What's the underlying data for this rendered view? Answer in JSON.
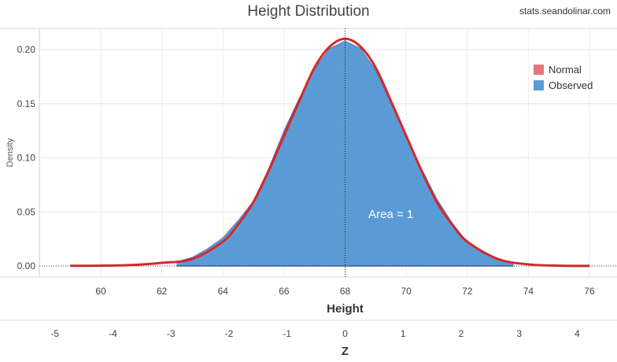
{
  "title": "Height Distribution",
  "source": "stats.seandolinar.com",
  "chart_data": {
    "type": "area",
    "title": "Height Distribution",
    "xlabel": "Height",
    "ylabel": "Density",
    "xlim": [
      57.5,
      77
    ],
    "ylim": [
      0,
      0.22
    ],
    "x_ticks": [
      60,
      62,
      64,
      66,
      68,
      70,
      72,
      74,
      76
    ],
    "y_ticks": [
      0.0,
      0.05,
      0.1,
      0.15,
      0.2
    ],
    "y_tick_labels": [
      "0.00",
      "0.05",
      "0.10",
      "0.15",
      "0.20"
    ],
    "secondary_axis": {
      "label": "Z",
      "ticks": [
        -5,
        -4,
        -3,
        -2,
        -1,
        0,
        1,
        2,
        3,
        4
      ],
      "tick_labels": [
        "-5",
        "-4",
        "-3",
        "-2",
        "-1",
        "0",
        "1",
        "2",
        "3",
        "4"
      ],
      "mean": 68,
      "sd": 1.9
    },
    "series": [
      {
        "name": "Normal",
        "color": "#d62728",
        "kind": "line",
        "x": [
          59,
          60,
          61,
          62,
          63,
          64,
          64.5,
          65,
          65.5,
          66,
          66.5,
          67,
          67.5,
          68,
          68.5,
          69,
          69.5,
          70,
          70.5,
          71,
          71.5,
          72,
          73,
          74,
          75,
          76
        ],
        "values": [
          0.0002,
          0.0003,
          0.0009,
          0.0029,
          0.0065,
          0.0225,
          0.0385,
          0.0592,
          0.0882,
          0.1203,
          0.1525,
          0.1834,
          0.2028,
          0.21,
          0.2028,
          0.1834,
          0.1525,
          0.1203,
          0.0882,
          0.0592,
          0.0385,
          0.0225,
          0.0065,
          0.0015,
          0.0003,
          0.0001
        ]
      },
      {
        "name": "Observed",
        "color": "#5b9bd5",
        "kind": "area",
        "x": [
          62.5,
          63,
          63.5,
          64,
          64.5,
          65,
          65.5,
          66,
          66.5,
          67,
          67.5,
          68,
          68.5,
          69,
          69.5,
          70,
          70.5,
          71,
          71.5,
          72,
          72.5,
          73,
          73.5
        ],
        "values": [
          0.004,
          0.008,
          0.016,
          0.026,
          0.042,
          0.06,
          0.09,
          0.125,
          0.155,
          0.182,
          0.201,
          0.208,
          0.201,
          0.181,
          0.15,
          0.12,
          0.09,
          0.062,
          0.04,
          0.022,
          0.012,
          0.006,
          0.003
        ]
      }
    ],
    "legend": {
      "placement": "top-right",
      "entries": [
        "Normal",
        "Observed"
      ]
    },
    "annotations": [
      {
        "text": "Area = 1",
        "x": 69.5,
        "y": 0.048
      }
    ],
    "reference_line": {
      "x": 68,
      "style": "dotted"
    },
    "grid": true
  }
}
